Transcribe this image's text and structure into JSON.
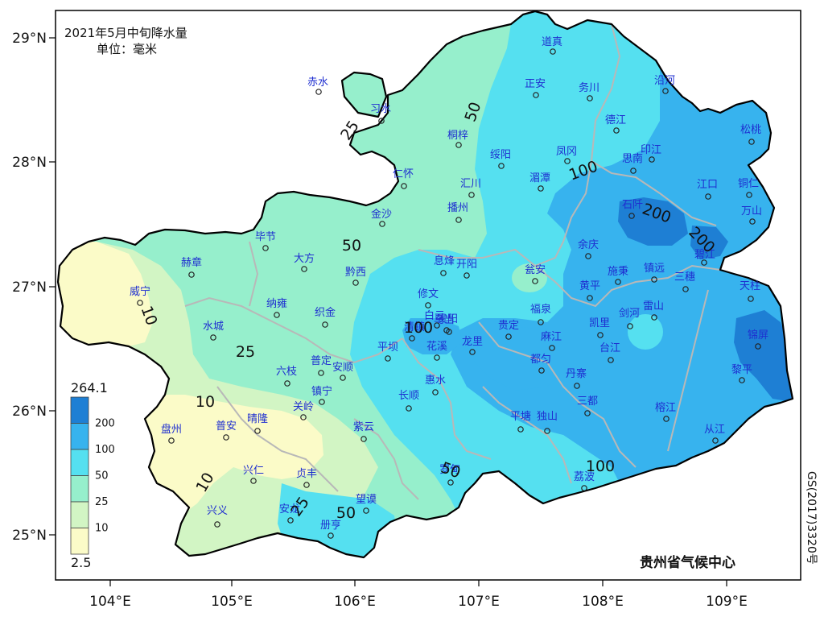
{
  "title": "2021年5月中旬降水量",
  "unit": "单位：毫米",
  "organization": "贵州省气候中心",
  "approval_number": "GS(2017)3320号",
  "legend": {
    "max_label": "264.1",
    "min_label": "2.5",
    "levels": [
      {
        "label": "200",
        "color": "#1e7fd4"
      },
      {
        "label": "100",
        "color": "#37b3ee"
      },
      {
        "label": "50",
        "color": "#55e0f0"
      },
      {
        "label": "25",
        "color": "#96efcc"
      },
      {
        "label": "10",
        "color": "#d2f5c4"
      },
      {
        "label": "",
        "color": "#fbfbc8"
      }
    ]
  },
  "lon_ticks": [
    "104°E",
    "105°E",
    "106°E",
    "107°E",
    "108°E",
    "109°E"
  ],
  "lat_ticks": [
    "29°N",
    "28°N",
    "27°N",
    "26°N",
    "25°N"
  ],
  "contour_labels": [
    "10",
    "10",
    "10",
    "25",
    "25",
    "25",
    "50",
    "50",
    "50",
    "50",
    "100",
    "100",
    "100",
    "200",
    "200"
  ],
  "stations": [
    "赤水",
    "习水",
    "道真",
    "正安",
    "务川",
    "沿河",
    "桐梓",
    "绥阳",
    "凤冈",
    "德江",
    "印江",
    "松桃",
    "仁怀",
    "汇川",
    "湄潭",
    "思南",
    "江口",
    "铜仁",
    "金沙",
    "播州",
    "石阡",
    "万山",
    "毕节",
    "大方",
    "黔西",
    "息烽",
    "开阳",
    "瓮安",
    "余庆",
    "碧江",
    "赫章",
    "威宁",
    "纳雍",
    "织金",
    "修文",
    "乌当",
    "白云",
    "清镇",
    "贵阳",
    "黄平",
    "施秉",
    "镇远",
    "三穗",
    "天柱",
    "水城",
    "平坝",
    "花溪",
    "龙里",
    "贵定",
    "福泉",
    "麻江",
    "凯里",
    "台江",
    "剑河",
    "雷山",
    "锦屏",
    "普定",
    "安顺",
    "六枝",
    "镇宁",
    "关岭",
    "都匀",
    "丹寨",
    "长顺",
    "惠水",
    "黎平",
    "盘州",
    "普安",
    "晴隆",
    "紫云",
    "平塘",
    "独山",
    "三都",
    "榕江",
    "从江",
    "兴仁",
    "贞丰",
    "罗甸",
    "荔波",
    "兴义",
    "安龙",
    "望谟",
    "册亨"
  ]
}
